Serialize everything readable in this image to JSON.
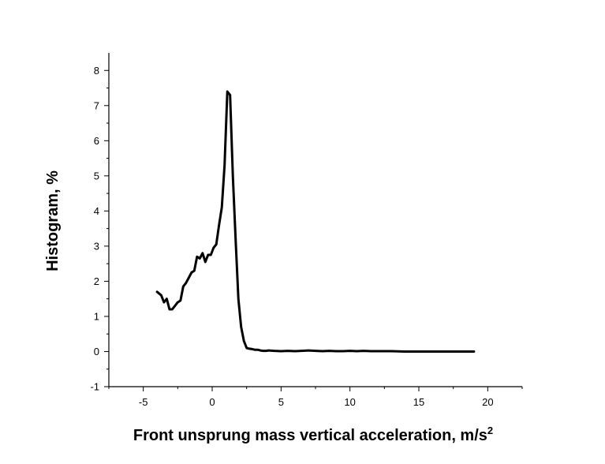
{
  "chart_data": {
    "type": "line",
    "title": "",
    "xlabel": "Front unsprung mass vertical acceleration, m/s",
    "xlabel_superscript": "2",
    "ylabel": "Histogram, %",
    "xlim": [
      -7.5,
      22.5
    ],
    "ylim": [
      -1,
      8.5
    ],
    "xticks": [
      -5,
      0,
      5,
      10,
      15,
      20
    ],
    "yticks": [
      -1,
      0,
      1,
      2,
      3,
      4,
      5,
      6,
      7,
      8
    ],
    "xtick_labels": [
      "-5",
      "0",
      "5",
      "10",
      "15",
      "20"
    ],
    "ytick_labels": [
      "-1",
      "0",
      "1",
      "2",
      "3",
      "4",
      "5",
      "6",
      "7",
      "8"
    ],
    "grid": false,
    "legend": "none",
    "series": [
      {
        "color": "#000000",
        "x": [
          -4.0,
          -3.7,
          -3.5,
          -3.3,
          -3.1,
          -2.9,
          -2.7,
          -2.5,
          -2.3,
          -2.1,
          -1.9,
          -1.7,
          -1.5,
          -1.3,
          -1.1,
          -0.9,
          -0.7,
          -0.5,
          -0.3,
          -0.1,
          0.1,
          0.3,
          0.5,
          0.7,
          0.9,
          1.1,
          1.3,
          1.5,
          1.7,
          1.9,
          2.1,
          2.3,
          2.5,
          2.7,
          2.9,
          3.1,
          3.3,
          3.5,
          3.7,
          3.9,
          4.1,
          4.5,
          5.0,
          5.5,
          6.0,
          6.5,
          7.0,
          7.5,
          8.0,
          8.5,
          9.0,
          9.5,
          10.0,
          10.5,
          11.0,
          11.5,
          12.0,
          13.0,
          14.0,
          15.0,
          16.0,
          17.0,
          18.0,
          19.0
        ],
        "values": [
          1.7,
          1.6,
          1.4,
          1.5,
          1.2,
          1.2,
          1.3,
          1.4,
          1.45,
          1.85,
          1.95,
          2.1,
          2.25,
          2.3,
          2.7,
          2.65,
          2.8,
          2.55,
          2.75,
          2.75,
          2.95,
          3.05,
          3.6,
          4.1,
          5.3,
          7.4,
          7.3,
          5.0,
          3.2,
          1.5,
          0.7,
          0.3,
          0.1,
          0.08,
          0.07,
          0.05,
          0.05,
          0.03,
          0.02,
          0.02,
          0.03,
          0.02,
          0.01,
          0.02,
          0.01,
          0.02,
          0.03,
          0.02,
          0.01,
          0.02,
          0.01,
          0.01,
          0.02,
          0.01,
          0.02,
          0.01,
          0.01,
          0.01,
          0.0,
          0.0,
          0.0,
          0.0,
          0.0,
          0.0
        ]
      }
    ]
  }
}
